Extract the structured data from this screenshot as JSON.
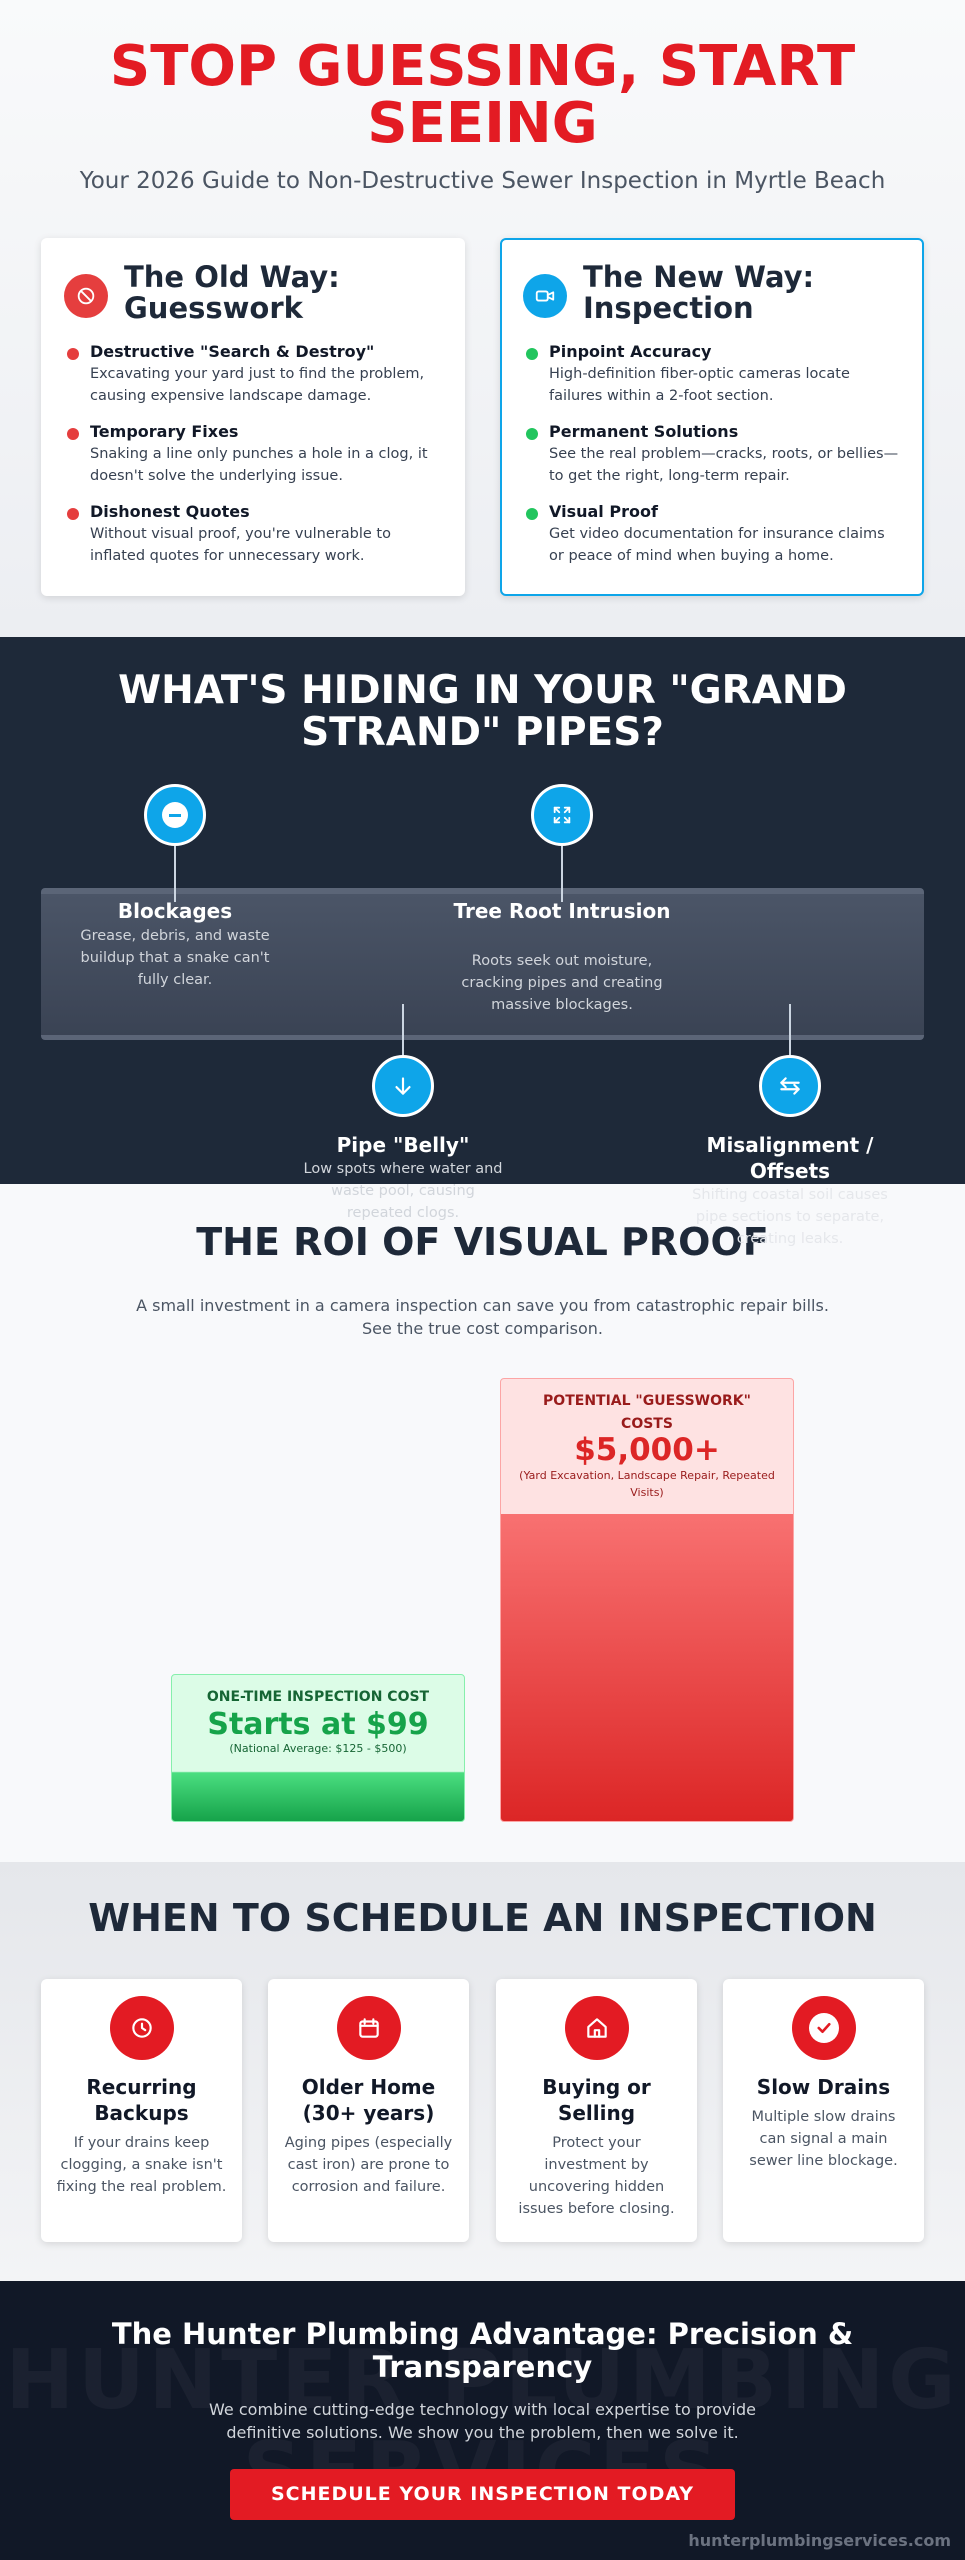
{
  "hero": {
    "title": "STOP GUESSING, START SEEING",
    "subtitle": "Your 2026 Guide to Non-Destructive Sewer Inspection in Myrtle Beach"
  },
  "comparison": {
    "old": {
      "title": "The Old Way: Guesswork",
      "items": [
        {
          "title": "Destructive \"Search & Destroy\"",
          "text": "Excavating your yard just to find the problem, causing expensive landscape damage."
        },
        {
          "title": "Temporary Fixes",
          "text": "Snaking a line only punches a hole in a clog, it doesn't solve the underlying issue."
        },
        {
          "title": "Dishonest Quotes",
          "text": "Without visual proof, you're vulnerable to inflated quotes for unnecessary work."
        }
      ]
    },
    "new": {
      "title": "The New Way: Inspection",
      "items": [
        {
          "title": "Pinpoint Accuracy",
          "text": "High-definition fiber-optic cameras locate failures within a 2-foot section."
        },
        {
          "title": "Permanent Solutions",
          "text": "See the real problem—cracks, roots, or bellies—to get the right, long-term repair."
        },
        {
          "title": "Visual Proof",
          "text": "Get video documentation for insurance claims or peace of mind when buying a home."
        }
      ]
    }
  },
  "problems": {
    "title": "WHAT'S HIDING IN YOUR \"GRAND STRAND\" PIPES?",
    "items": [
      {
        "title": "Blockages",
        "text": "Grease, debris, and waste buildup that a snake can't fully clear."
      },
      {
        "title": "Pipe \"Belly\"",
        "text": "Low spots where water and waste pool, causing repeated clogs."
      },
      {
        "title": "Tree Root Intrusion",
        "text": "Roots seek out moisture, cracking pipes and creating massive blockages."
      },
      {
        "title": "Misalignment / Offsets",
        "text": "Shifting coastal soil causes pipe sections to separate, creating leaks."
      }
    ]
  },
  "roi": {
    "title": "THE ROI OF VISUAL PROOF",
    "subtitle": "A small investment in a camera inspection can save you from catastrophic repair bills. See the true cost comparison.",
    "inspection": {
      "label": "ONE-TIME INSPECTION COST",
      "price": "Starts at $99",
      "note": "(National Average: $125 - $500)"
    },
    "guesswork": {
      "label": "POTENTIAL \"GUESSWORK\" COSTS",
      "price": "$5,000+",
      "note": "(Yard Excavation, Landscape Repair, Repeated Visits)"
    }
  },
  "schedule": {
    "title": "WHEN TO SCHEDULE AN INSPECTION",
    "items": [
      {
        "title": "Recurring Backups",
        "text": "If your drains keep clogging, a snake isn't fixing the real problem."
      },
      {
        "title": "Older Home (30+ years)",
        "text": "Aging pipes (especially cast iron) are prone to corrosion and failure."
      },
      {
        "title": "Buying or Selling",
        "text": "Protect your investment by uncovering hidden issues before closing."
      },
      {
        "title": "Slow Drains",
        "text": "Multiple slow drains can signal a main sewer line blockage."
      }
    ]
  },
  "footer": {
    "watermark": "HUNTER PLUMBING SERVICES",
    "title": "The Hunter Plumbing Advantage: Precision & Transparency",
    "text": "We combine cutting-edge technology with local expertise to provide definitive solutions. We show you the problem, then we solve it.",
    "button": "SCHEDULE YOUR INSPECTION TODAY",
    "url": "hunterplumbingservices.com"
  }
}
